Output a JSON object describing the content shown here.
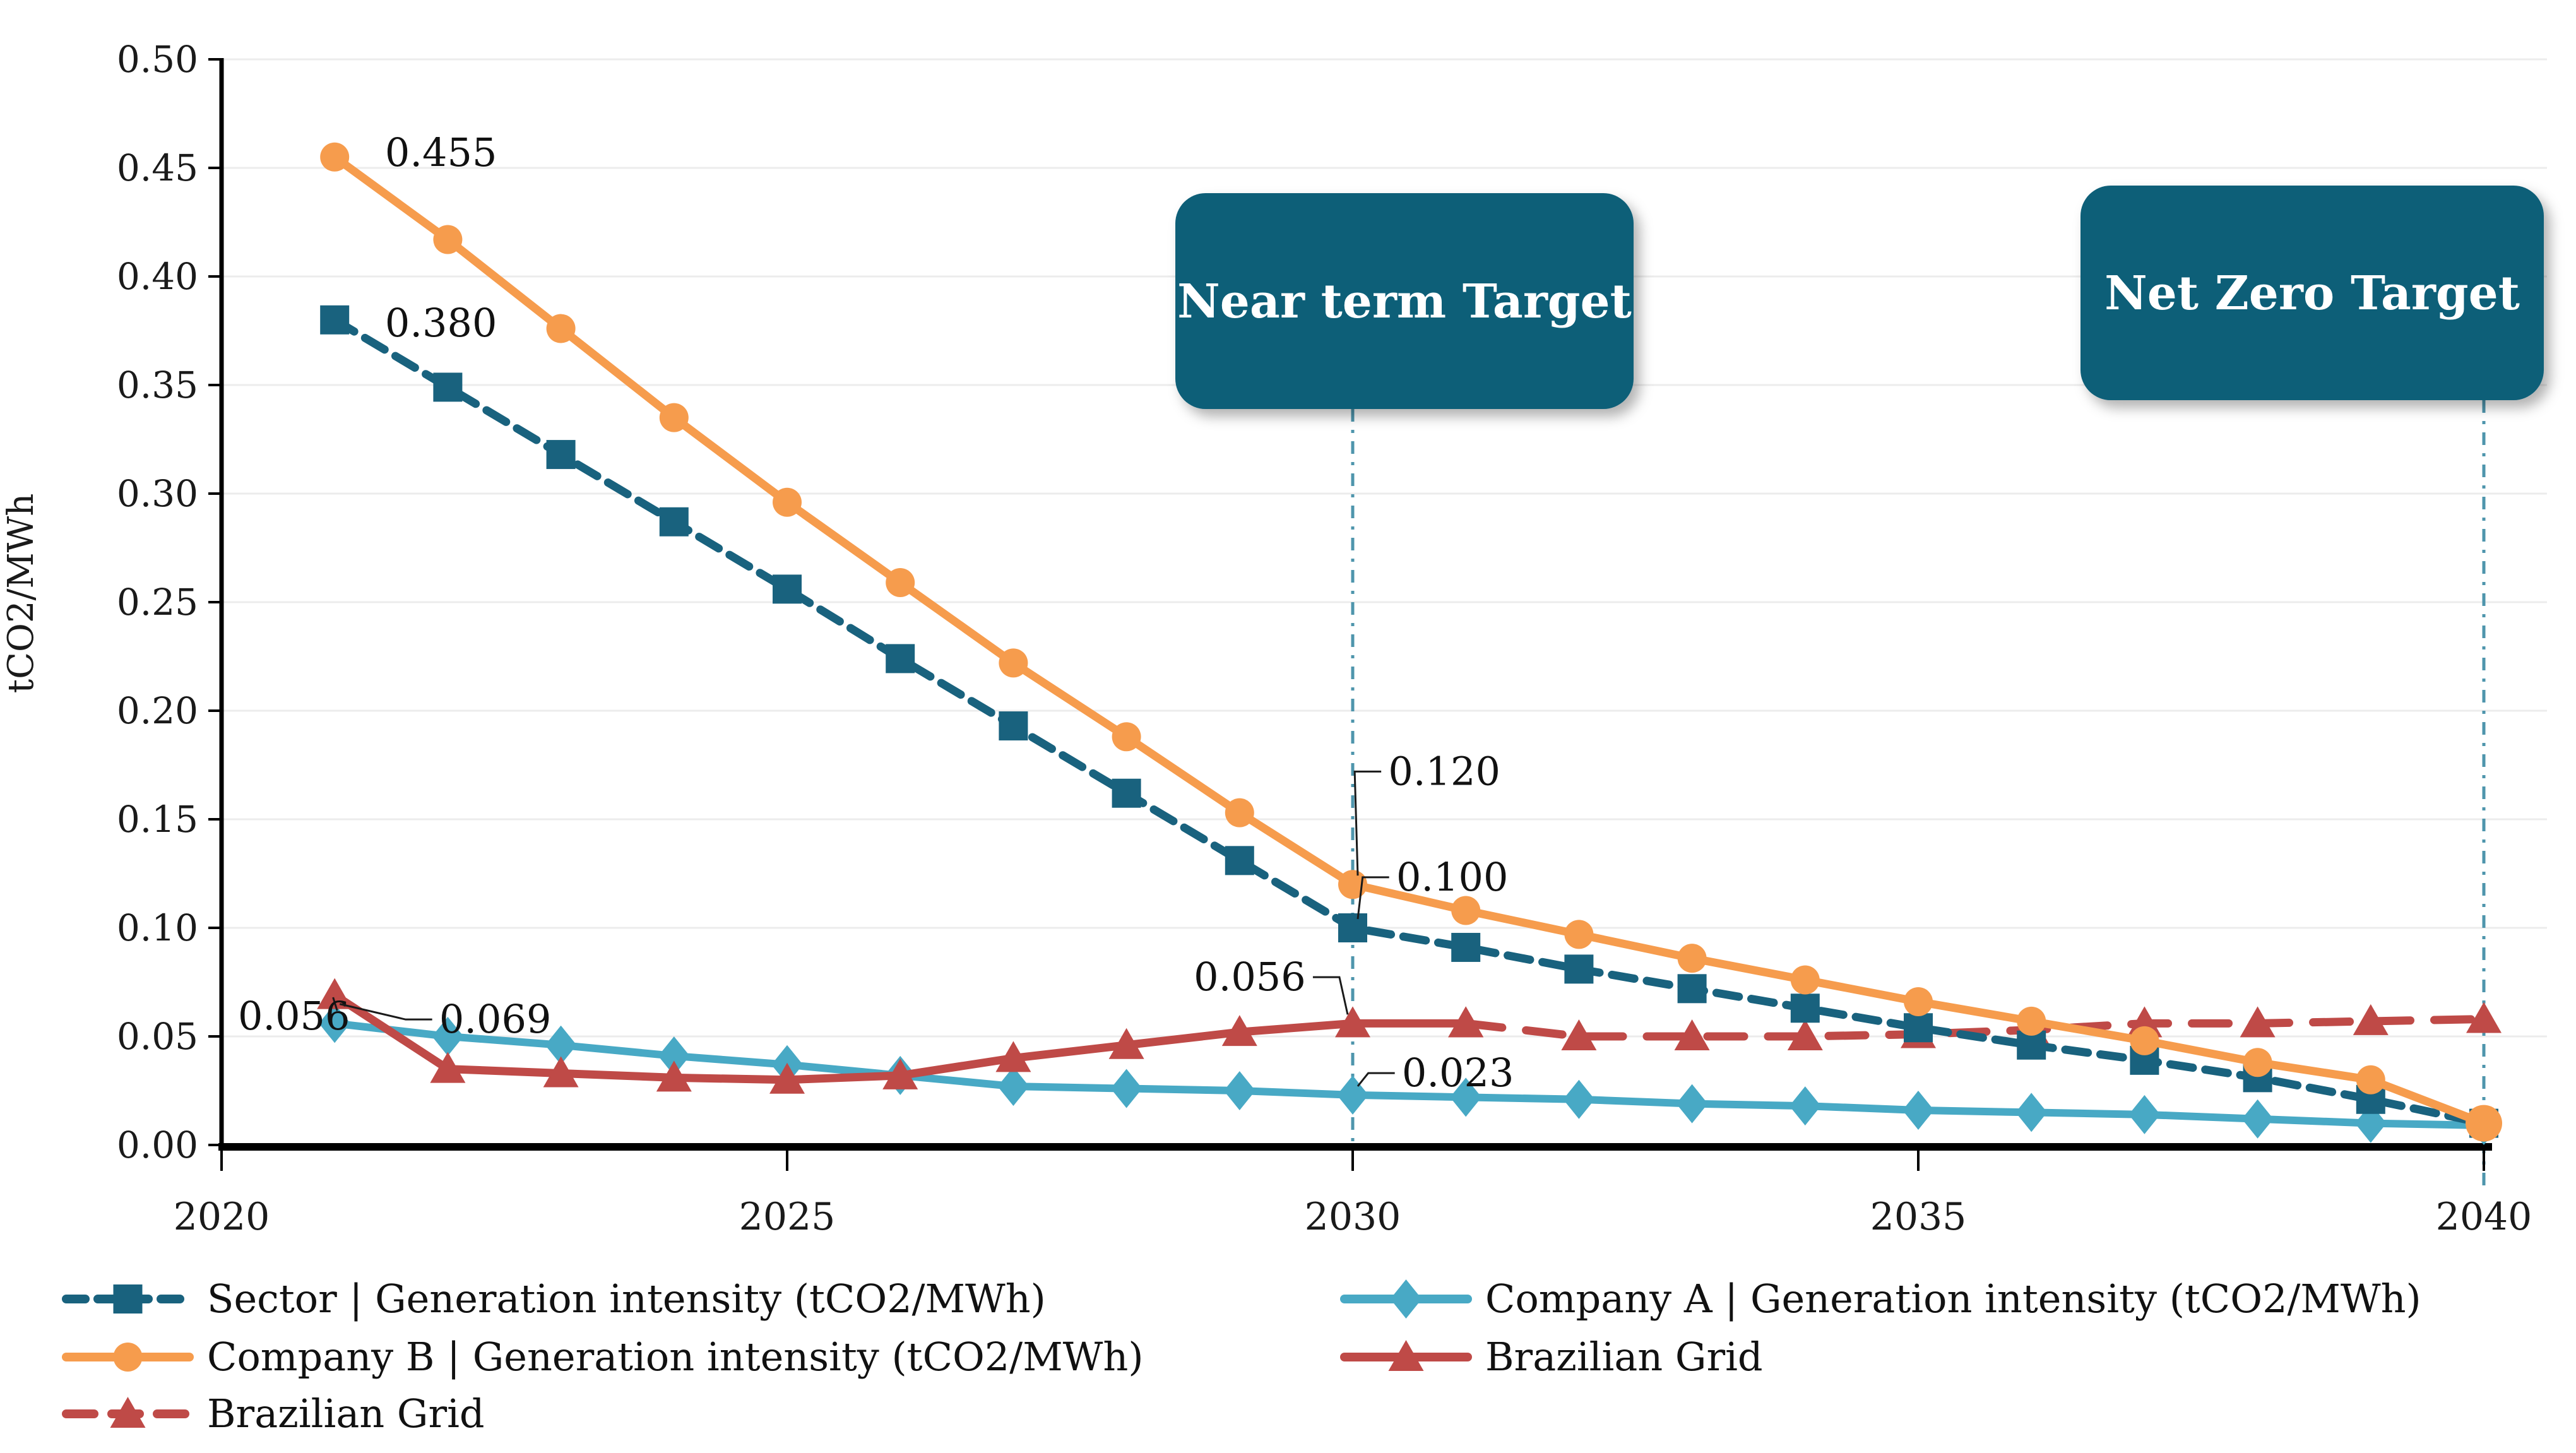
{
  "chart_data": {
    "type": "line",
    "title": "",
    "xlabel": "",
    "ylabel": "tCO2/MWh",
    "ylim": [
      0.0,
      0.5
    ],
    "ytick_step": 0.05,
    "ytick_labels": [
      "0.00",
      "0.05",
      "0.10",
      "0.15",
      "0.20",
      "0.25",
      "0.30",
      "0.35",
      "0.40",
      "0.45",
      "0.50"
    ],
    "ytick_values": [
      0.0,
      0.05,
      0.1,
      0.15,
      0.2,
      0.25,
      0.3,
      0.35,
      0.4,
      0.45,
      0.5
    ],
    "xtick_labels": [
      "2020",
      "2025",
      "2030",
      "2035",
      "2040"
    ],
    "xtick_values": [
      2020,
      2025,
      2030,
      2035,
      2040
    ],
    "x_range": [
      2020,
      2040
    ],
    "grid": "horizontal",
    "legend_position": "bottom",
    "series": [
      {
        "key": "company_a",
        "name": "Company A | Generation intensity (tCO2/MWh)",
        "color": "#48A9C5",
        "line_style": "solid",
        "marker": "diamond",
        "years": [
          2021,
          2022,
          2023,
          2024,
          2025,
          2026,
          2027,
          2028,
          2029,
          2030,
          2031,
          2032,
          2033,
          2034,
          2035,
          2036,
          2037,
          2038,
          2039,
          2040
        ],
        "values": [
          0.056,
          0.05,
          0.046,
          0.041,
          0.037,
          0.032,
          0.027,
          0.026,
          0.025,
          0.023,
          0.022,
          0.021,
          0.019,
          0.018,
          0.016,
          0.015,
          0.014,
          0.012,
          0.01,
          0.009
        ]
      },
      {
        "key": "grid_actual",
        "name": "Brazilian Grid",
        "color": "#BF4A47",
        "line_style": "solid",
        "marker": "triangle",
        "years": [
          2021,
          2022,
          2023,
          2024,
          2025,
          2026,
          2027,
          2028,
          2029,
          2030,
          2031
        ],
        "values": [
          0.069,
          0.035,
          0.033,
          0.031,
          0.03,
          0.032,
          0.04,
          0.046,
          0.052,
          0.056,
          0.056
        ]
      },
      {
        "key": "grid_projection",
        "name": "Brazilian Grid",
        "color": "#BF4A47",
        "line_style": "dashed",
        "marker": "triangle",
        "years": [
          2031,
          2032,
          2033,
          2034,
          2035,
          2036,
          2037,
          2038,
          2039,
          2040
        ],
        "values": [
          0.056,
          0.05,
          0.05,
          0.05,
          0.051,
          0.053,
          0.056,
          0.056,
          0.057,
          0.058
        ]
      },
      {
        "key": "sector",
        "name": "Sector | Generation intensity (tCO2/MWh)",
        "color": "#19627E",
        "line_style": "dashed",
        "marker": "square",
        "years": [
          2021,
          2022,
          2023,
          2024,
          2025,
          2026,
          2027,
          2028,
          2029,
          2030,
          2031,
          2032,
          2033,
          2034,
          2035,
          2036,
          2037,
          2038,
          2039,
          2040
        ],
        "values": [
          0.38,
          0.349,
          0.318,
          0.287,
          0.256,
          0.224,
          0.193,
          0.162,
          0.131,
          0.1,
          0.091,
          0.081,
          0.072,
          0.063,
          0.054,
          0.046,
          0.039,
          0.031,
          0.021,
          0.01
        ]
      },
      {
        "key": "company_b",
        "name": "Company B | Generation intensity (tCO2/MWh)",
        "color": "#F69C4D",
        "line_style": "solid",
        "marker": "circle",
        "years": [
          2021,
          2022,
          2023,
          2024,
          2025,
          2026,
          2027,
          2028,
          2029,
          2030,
          2031,
          2032,
          2033,
          2034,
          2035,
          2036,
          2037,
          2038,
          2039,
          2040
        ],
        "values": [
          0.455,
          0.417,
          0.376,
          0.335,
          0.296,
          0.259,
          0.222,
          0.188,
          0.153,
          0.12,
          0.108,
          0.097,
          0.086,
          0.076,
          0.066,
          0.057,
          0.048,
          0.038,
          0.03,
          0.01
        ]
      }
    ],
    "targets": [
      {
        "label": "Near term Target",
        "year": 2030
      },
      {
        "label": "Net Zero Target",
        "year": 2040
      }
    ],
    "value_labels": [
      {
        "text": "0.455",
        "label_year": 2021.94,
        "label_value": 0.457,
        "anchor": null
      },
      {
        "text": "0.380",
        "label_year": 2021.94,
        "label_value": 0.3785,
        "anchor": null
      },
      {
        "text": "0.120",
        "label_year": 2030.81,
        "label_value": 0.172,
        "anchor": {
          "year": 2030,
          "value": 0.12
        },
        "leader": "side"
      },
      {
        "text": "0.100",
        "label_year": 2030.88,
        "label_value": 0.1233,
        "anchor": {
          "year": 2030,
          "value": 0.1
        },
        "leader": "side"
      },
      {
        "text": "0.056",
        "label_year": 2029.09,
        "label_value": 0.0773,
        "anchor": {
          "year": 2030,
          "value": 0.056
        },
        "leader": "side"
      },
      {
        "text": "0.023",
        "label_year": 2030.93,
        "label_value": 0.0331,
        "anchor": {
          "year": 2030,
          "value": 0.023
        },
        "leader": "side"
      },
      {
        "text": "0.056",
        "label_year": 2020.64,
        "label_value": 0.0593,
        "anchor": {
          "year": 2021,
          "value": 0.056
        },
        "leader": "tip"
      },
      {
        "text": "0.069",
        "label_year": 2022.42,
        "label_value": 0.0578,
        "anchor": {
          "year": 2021,
          "value": 0.069
        },
        "leader": "side"
      }
    ],
    "legend": [
      {
        "series": "sector",
        "label": "Sector | Generation intensity (tCO2/MWh)",
        "col": 0,
        "row": 0
      },
      {
        "series": "company_a",
        "label": "Company A | Generation intensity (tCO2/MWh)",
        "col": 1,
        "row": 0
      },
      {
        "series": "company_b",
        "label": "Company B | Generation intensity (tCO2/MWh)",
        "col": 0,
        "row": 1
      },
      {
        "series": "grid_actual",
        "label": "Brazilian Grid",
        "col": 1,
        "row": 1
      },
      {
        "series": "grid_projection",
        "label": "Brazilian Grid",
        "col": 0,
        "row": 2
      }
    ],
    "colors": {
      "target_box": "#0F5E78",
      "target_line": "#4E95AC",
      "gridline": "#ECECEC",
      "axis": "#000000",
      "text": "#1A1A1A"
    }
  }
}
